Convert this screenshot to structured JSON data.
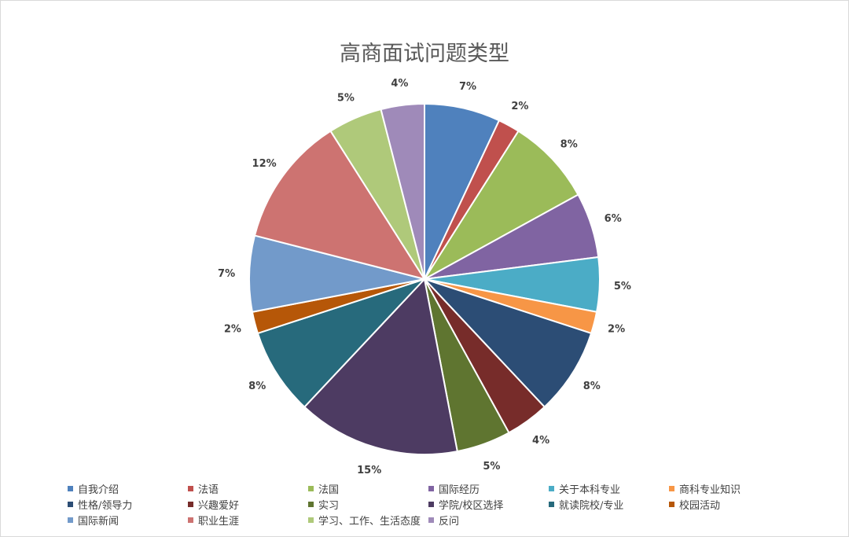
{
  "chart_data": {
    "type": "pie",
    "title": "高商面试问题类型",
    "slices": [
      {
        "label": "自我介绍",
        "value": 7,
        "display": "7%",
        "color": "#4f81bd"
      },
      {
        "label": "法语",
        "value": 2,
        "display": "2%",
        "color": "#c0504d"
      },
      {
        "label": "法国",
        "value": 8,
        "display": "8%",
        "color": "#9bbb59"
      },
      {
        "label": "国际经历",
        "value": 6,
        "display": "6%",
        "color": "#8064a2"
      },
      {
        "label": "关于本科专业",
        "value": 5,
        "display": "5%",
        "color": "#4bacc6"
      },
      {
        "label": "商科专业知识",
        "value": 2,
        "display": "2%",
        "color": "#f79646"
      },
      {
        "label": "性格/领导力",
        "value": 8,
        "display": "8%",
        "color": "#2c4d75"
      },
      {
        "label": "兴趣爱好",
        "value": 4,
        "display": "4%",
        "color": "#772c2a"
      },
      {
        "label": "实习",
        "value": 5,
        "display": "5%",
        "color": "#5f7530"
      },
      {
        "label": "学院/校区选择",
        "value": 15,
        "display": "15%",
        "color": "#4d3b62"
      },
      {
        "label": "就读院校/专业",
        "value": 8,
        "display": "8%",
        "color": "#276a7c"
      },
      {
        "label": "校园活动",
        "value": 2,
        "display": "2%",
        "color": "#b65708"
      },
      {
        "label": "国际新闻",
        "value": 7,
        "display": "7%",
        "color": "#729aca"
      },
      {
        "label": "职业生涯",
        "value": 12,
        "display": "12%",
        "color": "#cd7371"
      },
      {
        "label": "学习、工作、生活态度",
        "value": 5,
        "display": "5%",
        "color": "#afc97a"
      },
      {
        "label": "反问",
        "value": 4,
        "display": "4%",
        "color": "#9f8ab9"
      }
    ],
    "legend_position": "bottom"
  }
}
